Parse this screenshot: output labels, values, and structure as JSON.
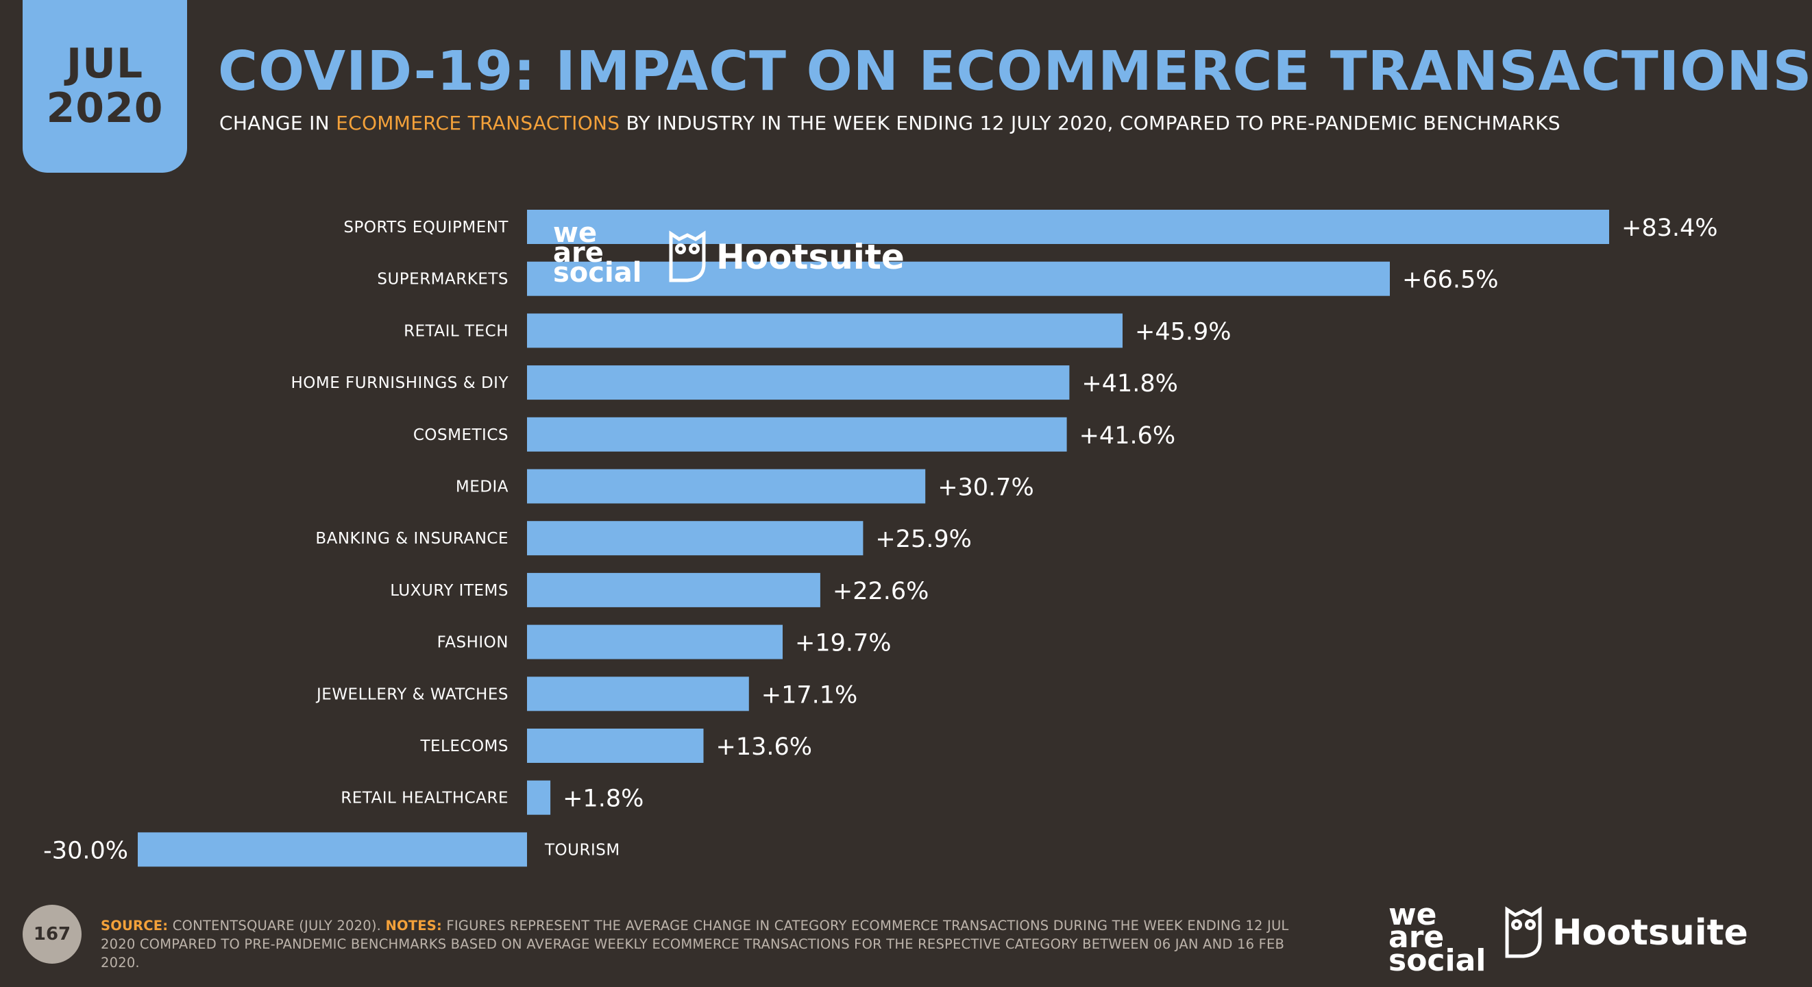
{
  "badge": {
    "month": "JUL",
    "year": "2020"
  },
  "title": "COVID-19: IMPACT ON ECOMMERCE TRANSACTIONS",
  "subtitle": {
    "pre": "CHANGE IN ",
    "highlight": "ECOMMERCE TRANSACTIONS",
    "post": " BY INDUSTRY IN THE WEEK ENDING 12 JULY 2020, COMPARED TO PRE-PANDEMIC BENCHMARKS"
  },
  "colors": {
    "background": "#352f2b",
    "bar": "#7ab4ea",
    "accent": "#f3a13a",
    "text": "#ffffff"
  },
  "chart_data": {
    "type": "bar",
    "orientation": "horizontal",
    "title": "COVID-19: IMPACT ON ECOMMERCE TRANSACTIONS",
    "xlabel": "",
    "ylabel": "",
    "categories": [
      "SPORTS EQUIPMENT",
      "SUPERMARKETS",
      "RETAIL TECH",
      "HOME FURNISHINGS & DIY",
      "COSMETICS",
      "MEDIA",
      "BANKING & INSURANCE",
      "LUXURY ITEMS",
      "FASHION",
      "JEWELLERY & WATCHES",
      "TELECOMS",
      "RETAIL HEALTHCARE",
      "TOURISM"
    ],
    "values": [
      83.4,
      66.5,
      45.9,
      41.8,
      41.6,
      30.7,
      25.9,
      22.6,
      19.7,
      17.1,
      13.6,
      1.8,
      -30.0
    ],
    "labels": [
      "+83.4%",
      "+66.5%",
      "+45.9%",
      "+41.8%",
      "+41.6%",
      "+30.7%",
      "+25.9%",
      "+22.6%",
      "+19.7%",
      "+17.1%",
      "+13.6%",
      "+1.8%",
      "-30.0%"
    ],
    "xlim": [
      -30,
      83.4
    ]
  },
  "watermark": {
    "weare_line1": "we",
    "weare_line2": "are",
    "weare_line3": "social",
    "hootsuite": "Hootsuite"
  },
  "footer": {
    "page": "167",
    "source_label": "SOURCE:",
    "source_text": " CONTENTSQUARE (JULY 2020). ",
    "notes_label": "NOTES:",
    "notes_text": " FIGURES REPRESENT THE AVERAGE CHANGE IN CATEGORY ECOMMERCE TRANSACTIONS DURING THE WEEK ENDING 12 JUL 2020 COMPARED TO PRE-PANDEMIC BENCHMARKS BASED ON AVERAGE WEEKLY ECOMMERCE TRANSACTIONS FOR THE RESPECTIVE CATEGORY BETWEEN 06 JAN AND 16 FEB 2020."
  },
  "brand": {
    "weare_line1": "we",
    "weare_line2": "are",
    "weare_line3": "social",
    "hootsuite": "Hootsuite"
  }
}
